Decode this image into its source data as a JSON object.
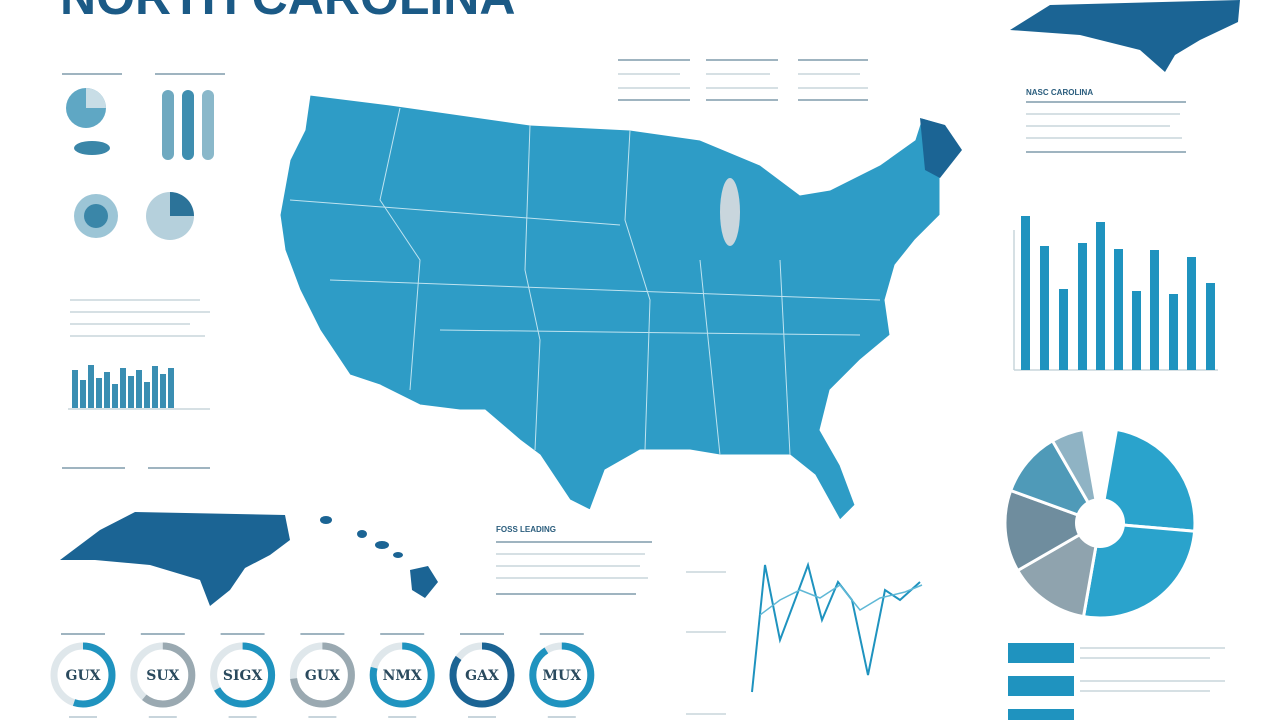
{
  "title": "NORTH CAROLINA",
  "side_panel": {
    "heading": "NASC CAROLINA"
  },
  "notes": {
    "heading": "FOSS LEADING"
  },
  "rings": [
    {
      "label": "GUX"
    },
    {
      "label": "SUX"
    },
    {
      "label": "SIGX"
    },
    {
      "label": "GUX"
    },
    {
      "label": "NMX"
    },
    {
      "label": "GAX"
    },
    {
      "label": "MUX"
    }
  ]
}
